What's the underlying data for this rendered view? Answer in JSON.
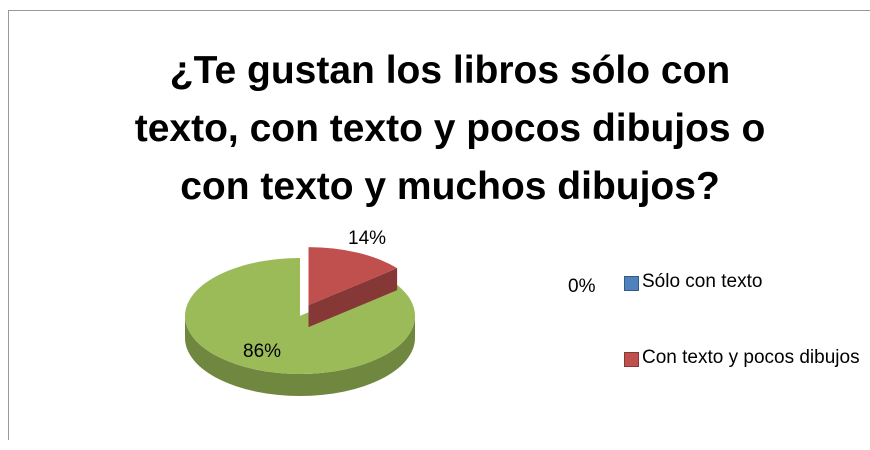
{
  "chart_data": {
    "type": "pie3d",
    "title": "¿Te gustan los libros sólo con texto, con texto y pocos dibujos o con texto y muchos dibujos?",
    "categories": [
      "Sólo con texto",
      "Con texto y pocos dibujos",
      null
    ],
    "values": [
      0,
      14,
      86
    ],
    "value_labels": [
      "0%",
      "14%",
      "86%"
    ],
    "colors": [
      "#4f81bd",
      "#c0504d",
      "#9bbb59"
    ],
    "legend": "right"
  }
}
